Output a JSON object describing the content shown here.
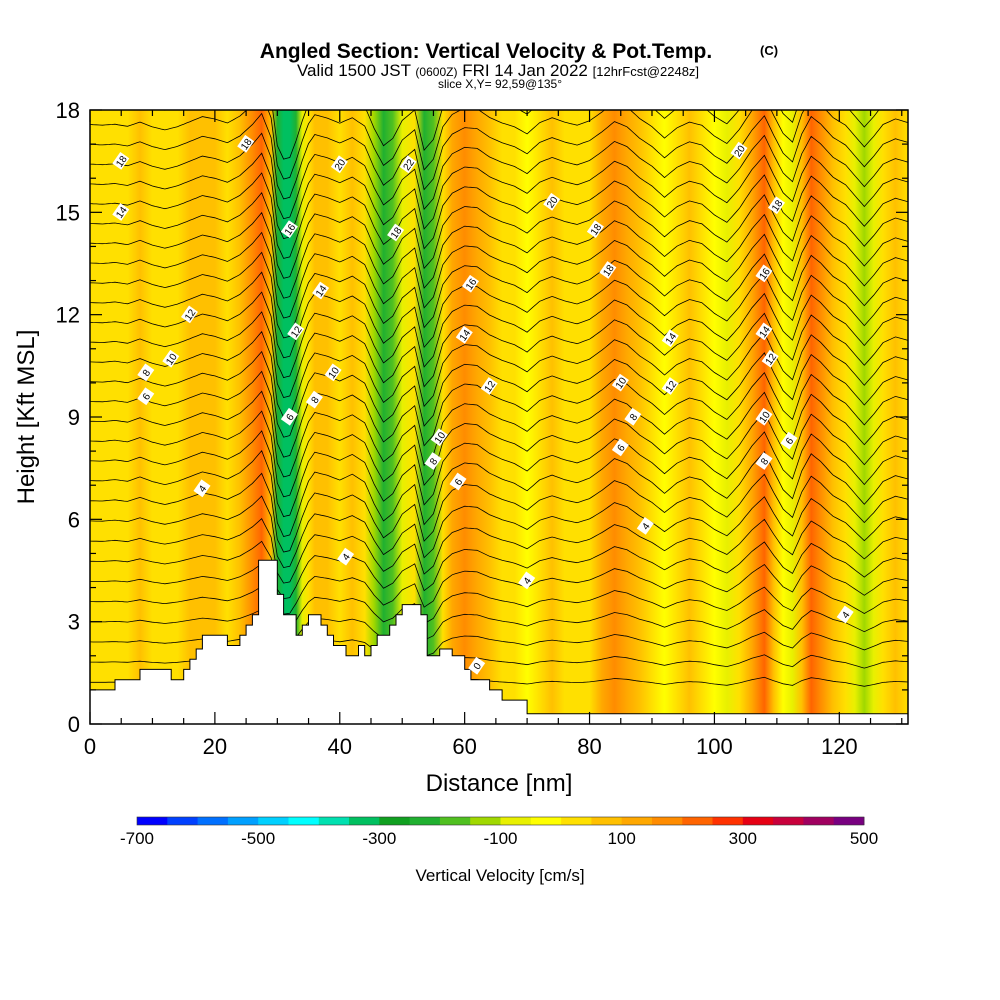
{
  "header": {
    "title": "Angled Section: Vertical Velocity & Pot.Temp.",
    "title_badge": "(C)",
    "valid_prefix": "Valid 1500 JST",
    "valid_zulu": "(0600Z)",
    "valid_date": "FRI 14 Jan 2022",
    "forecast": "[12hrFcst@2248z]",
    "slice": "slice X,Y= 92,59@135°"
  },
  "chart_data": {
    "type": "heatmap",
    "xlabel": "Distance [nm]",
    "ylabel": "Height [Kft MSL]",
    "xlim": [
      0,
      131
    ],
    "ylim": [
      0,
      18
    ],
    "x_ticks": [
      0,
      20,
      40,
      60,
      80,
      100,
      120
    ],
    "y_ticks": [
      0,
      3,
      6,
      9,
      12,
      15,
      18
    ],
    "x_tick_labels": [
      "0",
      "20",
      "40",
      "60",
      "80",
      "100",
      "120"
    ],
    "y_tick_labels": [
      "0",
      "3",
      "6",
      "9",
      "12",
      "15",
      "18"
    ],
    "velocity_columns": [
      {
        "x": 0,
        "w": 30
      },
      {
        "x": 2,
        "w": 30
      },
      {
        "x": 4,
        "w": 40
      },
      {
        "x": 6,
        "w": 30
      },
      {
        "x": 8,
        "w": 60
      },
      {
        "x": 10,
        "w": 30
      },
      {
        "x": 12,
        "w": 10
      },
      {
        "x": 14,
        "w": 30
      },
      {
        "x": 16,
        "w": 60
      },
      {
        "x": 18,
        "w": 90
      },
      {
        "x": 20,
        "w": 70
      },
      {
        "x": 22,
        "w": 40
      },
      {
        "x": 24,
        "w": 80
      },
      {
        "x": 26,
        "w": 150
      },
      {
        "x": 27.5,
        "w": 220
      },
      {
        "x": 29,
        "w": 60
      },
      {
        "x": 30,
        "w": -250
      },
      {
        "x": 31,
        "w": -340
      },
      {
        "x": 32,
        "w": -330
      },
      {
        "x": 33,
        "w": -220
      },
      {
        "x": 34,
        "w": -90
      },
      {
        "x": 35,
        "w": 20
      },
      {
        "x": 36,
        "w": 80
      },
      {
        "x": 38,
        "w": 60
      },
      {
        "x": 40,
        "w": 30
      },
      {
        "x": 42,
        "w": 70
      },
      {
        "x": 44,
        "w": 20
      },
      {
        "x": 45.5,
        "w": -120
      },
      {
        "x": 47,
        "w": -230
      },
      {
        "x": 48.5,
        "w": -180
      },
      {
        "x": 50,
        "w": -60
      },
      {
        "x": 52,
        "w": 10
      },
      {
        "x": 53.5,
        "w": -250
      },
      {
        "x": 55,
        "w": -180
      },
      {
        "x": 56.5,
        "w": 30
      },
      {
        "x": 58,
        "w": 110
      },
      {
        "x": 60,
        "w": 150
      },
      {
        "x": 62,
        "w": 140
      },
      {
        "x": 64,
        "w": 80
      },
      {
        "x": 66,
        "w": 40
      },
      {
        "x": 68,
        "w": 10
      },
      {
        "x": 70,
        "w": -40
      },
      {
        "x": 72,
        "w": 30
      },
      {
        "x": 74,
        "w": 60
      },
      {
        "x": 76,
        "w": 30
      },
      {
        "x": 78,
        "w": 10
      },
      {
        "x": 80,
        "w": 40
      },
      {
        "x": 82,
        "w": 100
      },
      {
        "x": 84,
        "w": 170
      },
      {
        "x": 86,
        "w": 140
      },
      {
        "x": 88,
        "w": 70
      },
      {
        "x": 90,
        "w": 20
      },
      {
        "x": 92,
        "w": -50
      },
      {
        "x": 94,
        "w": 20
      },
      {
        "x": 96,
        "w": 60
      },
      {
        "x": 98,
        "w": 40
      },
      {
        "x": 100,
        "w": -30
      },
      {
        "x": 102,
        "w": -80
      },
      {
        "x": 104,
        "w": 10
      },
      {
        "x": 106,
        "w": 130
      },
      {
        "x": 108,
        "w": 220
      },
      {
        "x": 109.5,
        "w": 90
      },
      {
        "x": 111,
        "w": -30
      },
      {
        "x": 112.5,
        "w": -90
      },
      {
        "x": 114,
        "w": 90
      },
      {
        "x": 115.5,
        "w": 200
      },
      {
        "x": 117,
        "w": 150
      },
      {
        "x": 119,
        "w": 60
      },
      {
        "x": 121,
        "w": 10
      },
      {
        "x": 122.5,
        "w": -60
      },
      {
        "x": 124,
        "w": -130
      },
      {
        "x": 125.5,
        "w": -60
      },
      {
        "x": 127,
        "w": 20
      },
      {
        "x": 129,
        "w": 60
      },
      {
        "x": 131,
        "w": 40
      }
    ],
    "terrain": [
      [
        0,
        1.0
      ],
      [
        4,
        1.0
      ],
      [
        4,
        1.3
      ],
      [
        8,
        1.3
      ],
      [
        8,
        1.6
      ],
      [
        13,
        1.6
      ],
      [
        13,
        1.3
      ],
      [
        15,
        1.3
      ],
      [
        15,
        1.6
      ],
      [
        16,
        1.6
      ],
      [
        16,
        1.9
      ],
      [
        17,
        1.9
      ],
      [
        17,
        2.2
      ],
      [
        18,
        2.2
      ],
      [
        18,
        2.6
      ],
      [
        22,
        2.6
      ],
      [
        22,
        2.3
      ],
      [
        24,
        2.3
      ],
      [
        24,
        2.6
      ],
      [
        25,
        2.6
      ],
      [
        25,
        2.9
      ],
      [
        26,
        2.9
      ],
      [
        26,
        3.2
      ],
      [
        27,
        3.2
      ],
      [
        27,
        4.8
      ],
      [
        30,
        4.8
      ],
      [
        30,
        3.8
      ],
      [
        31,
        3.8
      ],
      [
        31,
        3.2
      ],
      [
        33,
        3.2
      ],
      [
        33,
        2.6
      ],
      [
        34,
        2.6
      ],
      [
        34,
        2.9
      ],
      [
        35,
        2.9
      ],
      [
        35,
        3.2
      ],
      [
        37,
        3.2
      ],
      [
        37,
        2.9
      ],
      [
        38,
        2.9
      ],
      [
        38,
        2.6
      ],
      [
        39,
        2.6
      ],
      [
        39,
        2.3
      ],
      [
        41,
        2.3
      ],
      [
        41,
        2.0
      ],
      [
        43,
        2.0
      ],
      [
        43,
        2.3
      ],
      [
        44,
        2.3
      ],
      [
        44,
        2.0
      ],
      [
        45,
        2.0
      ],
      [
        45,
        2.3
      ],
      [
        46,
        2.3
      ],
      [
        46,
        2.6
      ],
      [
        48,
        2.6
      ],
      [
        48,
        2.9
      ],
      [
        49,
        2.9
      ],
      [
        49,
        3.2
      ],
      [
        50,
        3.2
      ],
      [
        50,
        3.5
      ],
      [
        53,
        3.5
      ],
      [
        53,
        3.2
      ],
      [
        54,
        3.2
      ],
      [
        54,
        2.0
      ],
      [
        56,
        2.0
      ],
      [
        56,
        2.2
      ],
      [
        58,
        2.2
      ],
      [
        58,
        2.0
      ],
      [
        60,
        2.0
      ],
      [
        60,
        1.6
      ],
      [
        61,
        1.6
      ],
      [
        61,
        1.3
      ],
      [
        64,
        1.3
      ],
      [
        64,
        1.0
      ],
      [
        66,
        1.0
      ],
      [
        66,
        0.7
      ],
      [
        70,
        0.7
      ],
      [
        70,
        0.3
      ],
      [
        131,
        0.3
      ]
    ],
    "contour_labels": [
      {
        "x": 5,
        "y": 16.5,
        "text": "18"
      },
      {
        "x": 5,
        "y": 15.0,
        "text": "14"
      },
      {
        "x": 25,
        "y": 17.0,
        "text": "18"
      },
      {
        "x": 40,
        "y": 16.4,
        "text": "20"
      },
      {
        "x": 51,
        "y": 16.4,
        "text": "22"
      },
      {
        "x": 74,
        "y": 15.3,
        "text": "20"
      },
      {
        "x": 104,
        "y": 16.8,
        "text": "20"
      },
      {
        "x": 110,
        "y": 15.2,
        "text": "18"
      },
      {
        "x": 32,
        "y": 14.5,
        "text": "16"
      },
      {
        "x": 49,
        "y": 14.4,
        "text": "18"
      },
      {
        "x": 81,
        "y": 14.5,
        "text": "18"
      },
      {
        "x": 83,
        "y": 13.3,
        "text": "18"
      },
      {
        "x": 108,
        "y": 13.2,
        "text": "16"
      },
      {
        "x": 37,
        "y": 12.7,
        "text": "14"
      },
      {
        "x": 61,
        "y": 12.9,
        "text": "16"
      },
      {
        "x": 16,
        "y": 12.0,
        "text": "12"
      },
      {
        "x": 33,
        "y": 11.5,
        "text": "12"
      },
      {
        "x": 60,
        "y": 11.4,
        "text": "14"
      },
      {
        "x": 93,
        "y": 11.3,
        "text": "14"
      },
      {
        "x": 108,
        "y": 11.5,
        "text": "14"
      },
      {
        "x": 13,
        "y": 10.7,
        "text": "10"
      },
      {
        "x": 9,
        "y": 10.3,
        "text": "8"
      },
      {
        "x": 39,
        "y": 10.3,
        "text": "10"
      },
      {
        "x": 64,
        "y": 9.9,
        "text": "12"
      },
      {
        "x": 85,
        "y": 10.0,
        "text": "10"
      },
      {
        "x": 93,
        "y": 9.9,
        "text": "12"
      },
      {
        "x": 109,
        "y": 10.7,
        "text": "12"
      },
      {
        "x": 9,
        "y": 9.6,
        "text": "6"
      },
      {
        "x": 36,
        "y": 9.5,
        "text": "8"
      },
      {
        "x": 32,
        "y": 9.0,
        "text": "6"
      },
      {
        "x": 87,
        "y": 9.0,
        "text": "8"
      },
      {
        "x": 108,
        "y": 9.0,
        "text": "10"
      },
      {
        "x": 56,
        "y": 8.4,
        "text": "10"
      },
      {
        "x": 85,
        "y": 8.1,
        "text": "6"
      },
      {
        "x": 112,
        "y": 8.3,
        "text": "6"
      },
      {
        "x": 55,
        "y": 7.7,
        "text": "8"
      },
      {
        "x": 108,
        "y": 7.7,
        "text": "8"
      },
      {
        "x": 59,
        "y": 7.1,
        "text": "6"
      },
      {
        "x": 18,
        "y": 6.9,
        "text": "4"
      },
      {
        "x": 89,
        "y": 5.8,
        "text": "4"
      },
      {
        "x": 41,
        "y": 4.9,
        "text": "4"
      },
      {
        "x": 70,
        "y": 4.2,
        "text": "4"
      },
      {
        "x": 121,
        "y": 3.2,
        "text": "4"
      },
      {
        "x": 62,
        "y": 1.7,
        "text": "0"
      }
    ],
    "colorbar": {
      "label": "Vertical Velocity [cm/s]",
      "min": -700,
      "max": 500,
      "tick_values": [
        -700,
        -500,
        -300,
        -100,
        100,
        300,
        500
      ],
      "tick_labels": [
        "-700",
        "-500",
        "-300",
        "-100",
        "100",
        "300",
        "500"
      ],
      "bins": [
        -700,
        -650,
        -600,
        -550,
        -500,
        -450,
        -400,
        -350,
        -300,
        -250,
        -200,
        -150,
        -100,
        -50,
        0,
        50,
        100,
        150,
        200,
        250,
        300,
        350,
        400,
        450,
        500
      ],
      "colors": [
        "#0000ff",
        "#0040ff",
        "#0070ff",
        "#00a0ff",
        "#00d0ff",
        "#00ffff",
        "#00e0b0",
        "#00c060",
        "#10a020",
        "#20b030",
        "#50c020",
        "#a0d800",
        "#e8f000",
        "#ffff00",
        "#ffe000",
        "#ffc000",
        "#ffa800",
        "#ff8c00",
        "#ff6400",
        "#ff3200",
        "#e60014",
        "#c8003c",
        "#a00060",
        "#780080"
      ]
    }
  }
}
